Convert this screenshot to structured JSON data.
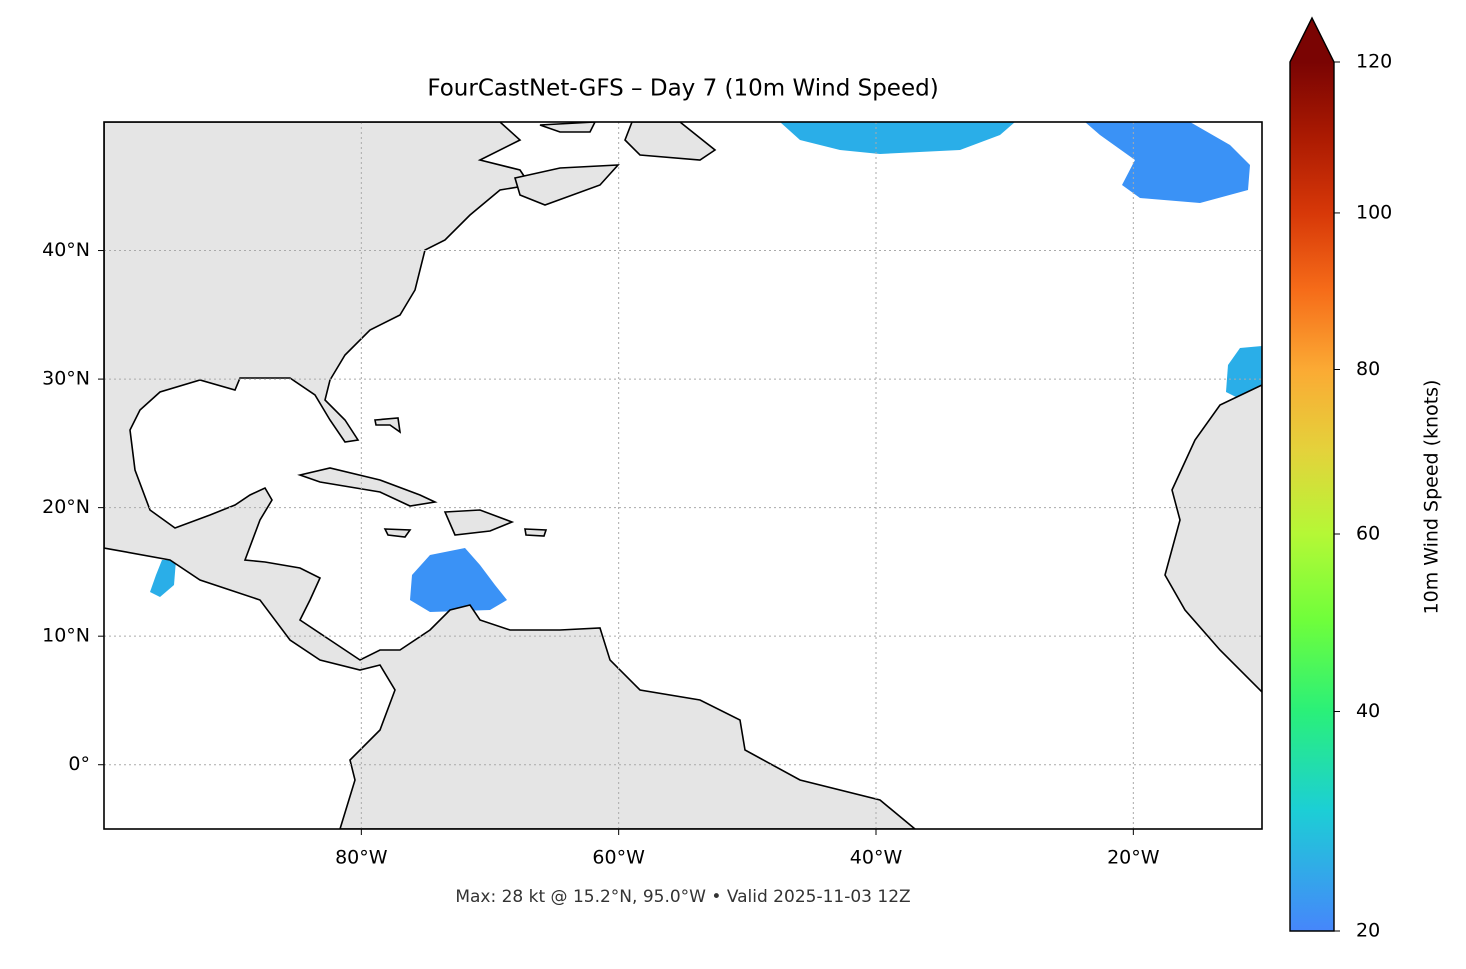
{
  "chart_data": {
    "type": "map",
    "title": "FourCastNet-GFS – Day 7 (10m Wind Speed)",
    "xlim": [
      -100,
      -10
    ],
    "ylim": [
      -5,
      50
    ],
    "xticks": [
      {
        "value": -80,
        "label": "80°W"
      },
      {
        "value": -60,
        "label": "60°W"
      },
      {
        "value": -40,
        "label": "40°W"
      },
      {
        "value": -20,
        "label": "20°W"
      }
    ],
    "yticks": [
      {
        "value": 0,
        "label": "0°"
      },
      {
        "value": 10,
        "label": "10°N"
      },
      {
        "value": 20,
        "label": "20°N"
      },
      {
        "value": 30,
        "label": "30°N"
      },
      {
        "value": 40,
        "label": "40°N"
      }
    ],
    "grid": true,
    "colorbar": {
      "label": "10m Wind Speed (knots)",
      "lim": [
        20,
        120
      ],
      "ticks": [
        20,
        40,
        60,
        80,
        100,
        120
      ]
    },
    "annotation": "Max: 28 kt @ 15.2°N, 95.0°W • Valid 2025-11-03 12Z"
  }
}
